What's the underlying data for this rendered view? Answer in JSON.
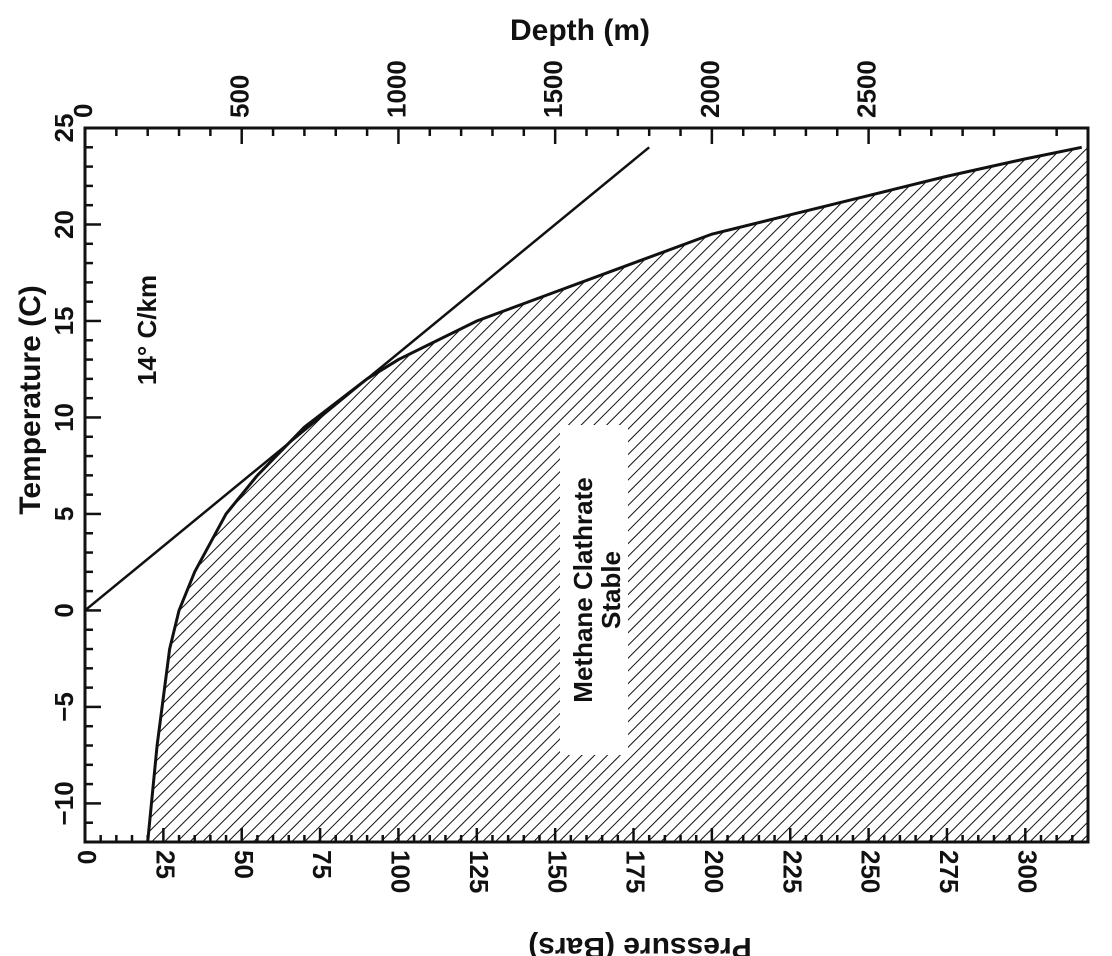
{
  "chart_data": {
    "type": "area",
    "orientation": "rotated-90",
    "pressure_axis": {
      "label": "Pressure (Bars)",
      "range": [
        0,
        320
      ],
      "ticks": [
        0,
        25,
        50,
        75,
        100,
        125,
        150,
        175,
        200,
        225,
        250,
        275,
        300
      ],
      "tick_labels": [
        "0",
        "25",
        "50",
        "75",
        "100",
        "125",
        "150",
        "175",
        "200",
        "225",
        "250",
        "275",
        "300"
      ]
    },
    "depth_axis": {
      "label": "Depth (m)",
      "range": [
        0,
        3200
      ],
      "ticks": [
        0,
        500,
        1000,
        1500,
        2000,
        2500
      ],
      "tick_labels": [
        "0",
        "500",
        "1000",
        "1500",
        "2000",
        "2500"
      ]
    },
    "temperature_axis": {
      "label": "Temperature (C)",
      "range": [
        -12,
        25
      ],
      "ticks": [
        -10,
        -5,
        0,
        5,
        10,
        15,
        20,
        25
      ],
      "tick_labels": [
        "−10",
        "−5",
        "0",
        "5",
        "10",
        "15",
        "20",
        "25"
      ]
    },
    "series": [
      {
        "name": "Methane Clathrate Stable",
        "kind": "stability-boundary",
        "pressure": [
          20,
          23,
          27,
          30,
          35,
          45,
          55,
          70,
          90,
          100,
          125,
          150,
          175,
          200,
          225,
          250,
          275,
          300,
          318
        ],
        "temperature": [
          -12,
          -7,
          -2,
          0,
          2,
          5,
          7,
          9.5,
          12,
          13,
          15,
          16.5,
          18,
          19.5,
          20.5,
          21.5,
          22.5,
          23.4,
          24
        ]
      },
      {
        "name": "14° C/km",
        "kind": "geotherm",
        "pressure": [
          0,
          180
        ],
        "temperature": [
          0,
          24
        ]
      }
    ],
    "annotations": [
      {
        "text": "14° C/km"
      },
      {
        "text_line1": "Methane Clathrate",
        "text_line2": "Stable"
      }
    ]
  }
}
